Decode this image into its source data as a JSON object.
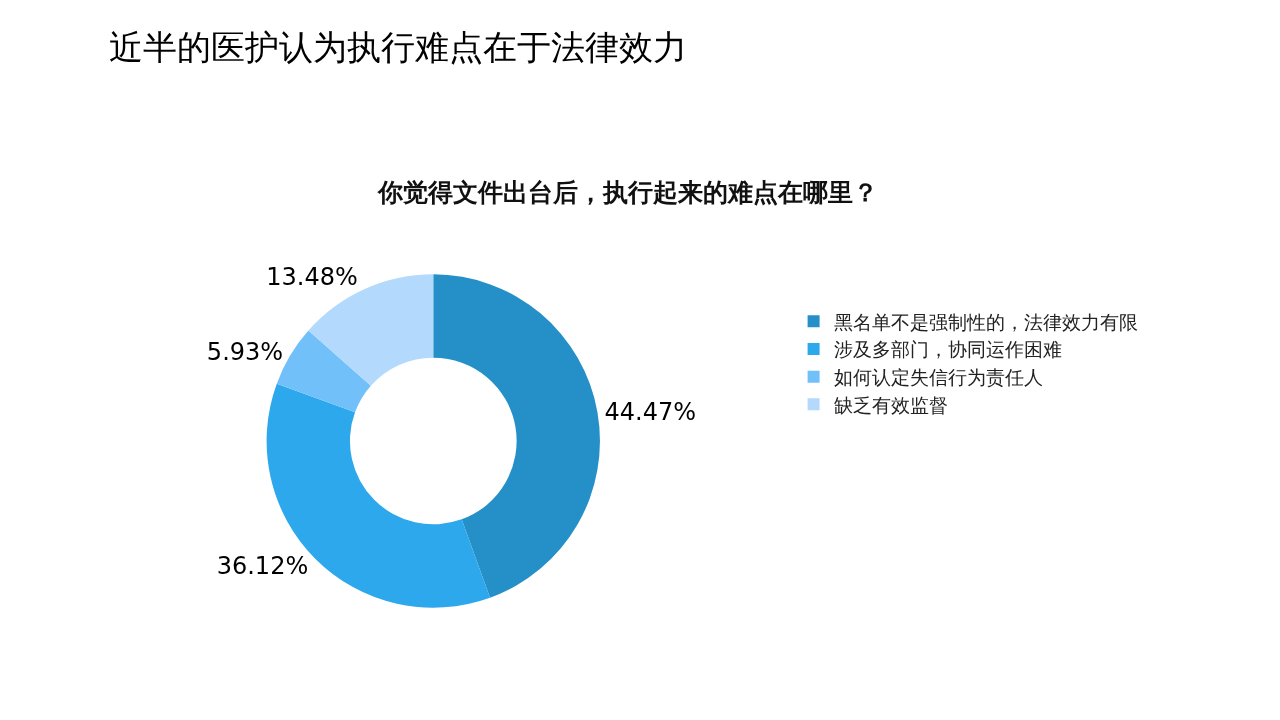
{
  "chart_data": {
    "type": "donut",
    "title": "近半的医护认为执行难点在于法律效力",
    "subtitle": "你觉得文件出台后，执行起来的难点在哪里？",
    "categories": [
      "黑名单不是强制性的，法律效力有限",
      "涉及多部门，协同运作困难",
      "如何认定失信行为责任人",
      "缺乏有效监督"
    ],
    "values": [
      44.47,
      36.12,
      5.93,
      13.48
    ],
    "colors": [
      "#2590c8",
      "#2ea8ec",
      "#72c0fa",
      "#b3d9fc"
    ],
    "value_labels": [
      "44.47%",
      "36.12%",
      "5.93%",
      "13.48%"
    ],
    "legend": "right"
  }
}
